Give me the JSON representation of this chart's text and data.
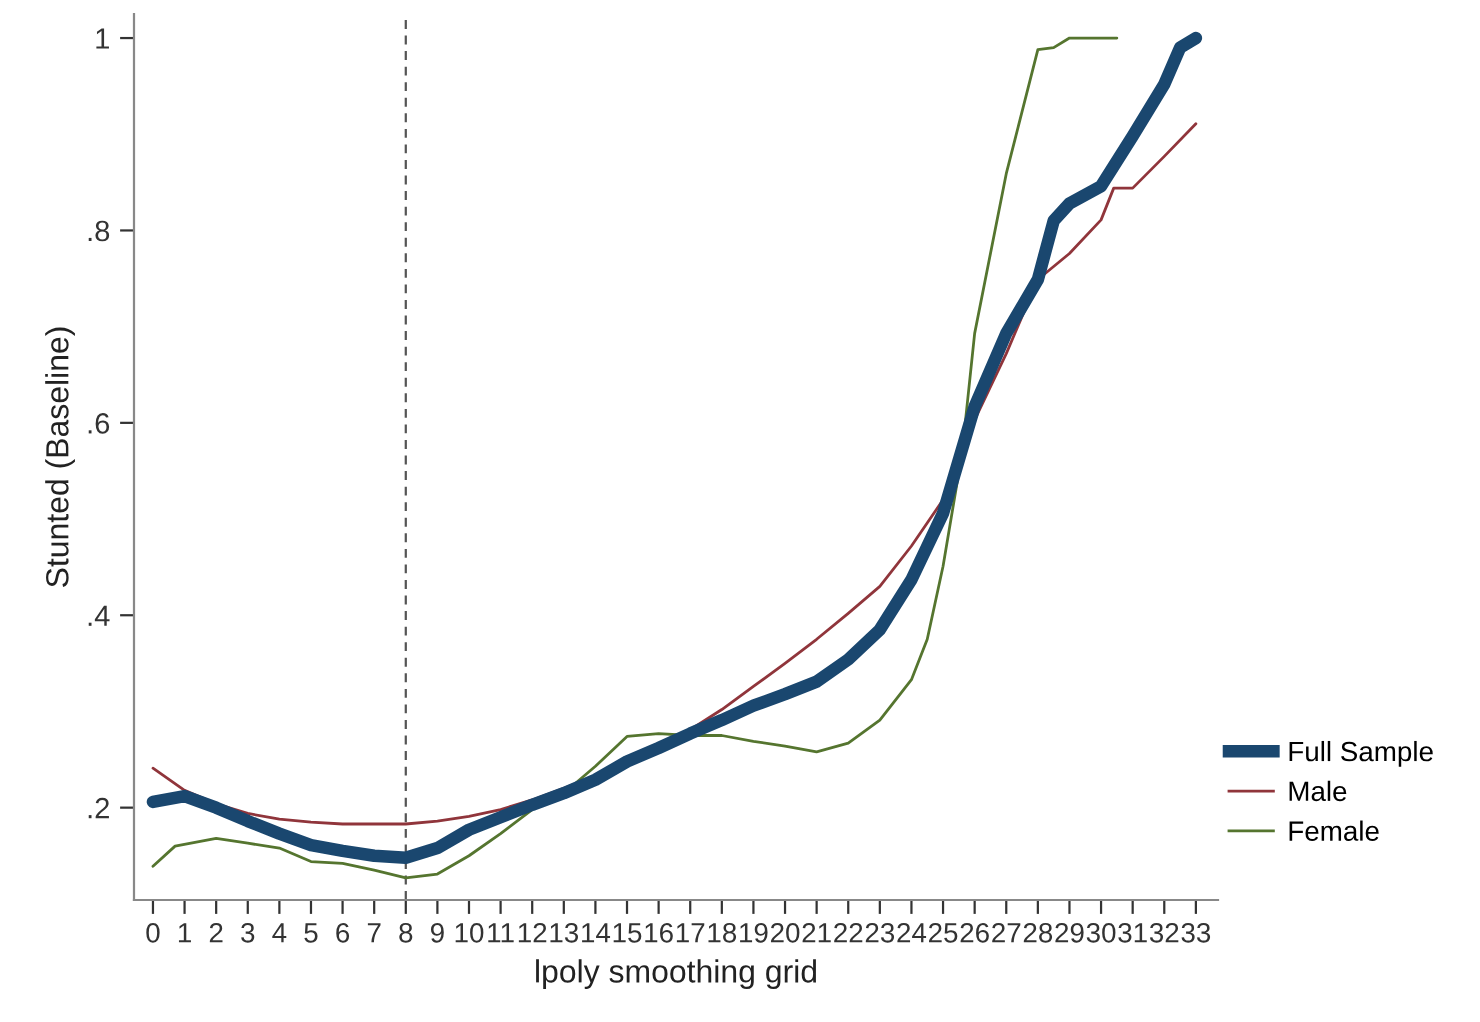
{
  "chart_data": {
    "type": "line",
    "xlabel": "lpoly smoothing grid",
    "ylabel": "Stunted (Baseline)",
    "xlim": [
      -0.6,
      33.7
    ],
    "xticks": [
      0,
      1,
      2,
      3,
      4,
      5,
      6,
      7,
      8,
      9,
      10,
      11,
      12,
      13,
      14,
      15,
      16,
      17,
      18,
      19,
      20,
      21,
      22,
      23,
      24,
      25,
      26,
      27,
      28,
      29,
      30,
      31,
      32,
      33
    ],
    "ylim": [
      0.104,
      1.025
    ],
    "yticks": [
      {
        "value": 0.2,
        "label": ".2"
      },
      {
        "value": 0.4,
        "label": ".4"
      },
      {
        "value": 0.6,
        "label": ".6"
      },
      {
        "value": 0.8,
        "label": ".8"
      },
      1
    ],
    "grid": false,
    "legend": "right",
    "marker": "none",
    "ref_lines": [
      {
        "axis": "x",
        "value": 8,
        "color": "#555555",
        "line_style": "dashed"
      }
    ],
    "series": [
      {
        "name": "Full Sample",
        "color": "#1a476f",
        "x": [
          0,
          1,
          2,
          3,
          4,
          5,
          6,
          7,
          8,
          9,
          10,
          11,
          12,
          13,
          14,
          15,
          16,
          17,
          18,
          19,
          20,
          21,
          22,
          23,
          24,
          25,
          26,
          27,
          28,
          28.5,
          29,
          30,
          31,
          32,
          32.5,
          33
        ],
        "values": [
          0.206,
          0.212,
          0.2,
          0.186,
          0.173,
          0.161,
          0.155,
          0.15,
          0.148,
          0.158,
          0.177,
          0.19,
          0.203,
          0.215,
          0.229,
          0.248,
          0.262,
          0.277,
          0.291,
          0.306,
          0.318,
          0.331,
          0.354,
          0.385,
          0.437,
          0.506,
          0.617,
          0.693,
          0.749,
          0.81,
          0.828,
          0.846,
          0.898,
          0.952,
          0.99,
          1.0
        ]
      },
      {
        "name": "Male",
        "color": "#90353b",
        "x": [
          0,
          1,
          2,
          3,
          4,
          5,
          6,
          7,
          8,
          9,
          10,
          11,
          12,
          13,
          14,
          15,
          16,
          17,
          18,
          19,
          20,
          21,
          22,
          23,
          24,
          25,
          26,
          27,
          28,
          29,
          30,
          30.4,
          31,
          32,
          33
        ],
        "values": [
          0.241,
          0.218,
          0.204,
          0.194,
          0.188,
          0.185,
          0.183,
          0.183,
          0.183,
          0.186,
          0.191,
          0.198,
          0.208,
          0.22,
          0.233,
          0.246,
          0.262,
          0.281,
          0.302,
          0.326,
          0.35,
          0.375,
          0.402,
          0.43,
          0.472,
          0.52,
          0.603,
          0.672,
          0.749,
          0.776,
          0.811,
          0.844,
          0.844,
          0.877,
          0.911
        ]
      },
      {
        "name": "Female",
        "color": "#55752f",
        "x": [
          0,
          0.7,
          2,
          3,
          4,
          5,
          6,
          7,
          8,
          9,
          10,
          11,
          12,
          13,
          14,
          15,
          16,
          17,
          18,
          19,
          20,
          21,
          22,
          23,
          24,
          24.5,
          25,
          25.6,
          26,
          27,
          28,
          28.5,
          29,
          30.5
        ],
        "values": [
          0.139,
          0.16,
          0.168,
          0.163,
          0.158,
          0.144,
          0.142,
          0.135,
          0.127,
          0.131,
          0.15,
          0.173,
          0.198,
          0.215,
          0.243,
          0.274,
          0.277,
          0.275,
          0.275,
          0.269,
          0.264,
          0.258,
          0.267,
          0.291,
          0.333,
          0.375,
          0.451,
          0.568,
          0.693,
          0.859,
          0.988,
          0.99,
          1.0,
          1.0
        ]
      }
    ]
  }
}
